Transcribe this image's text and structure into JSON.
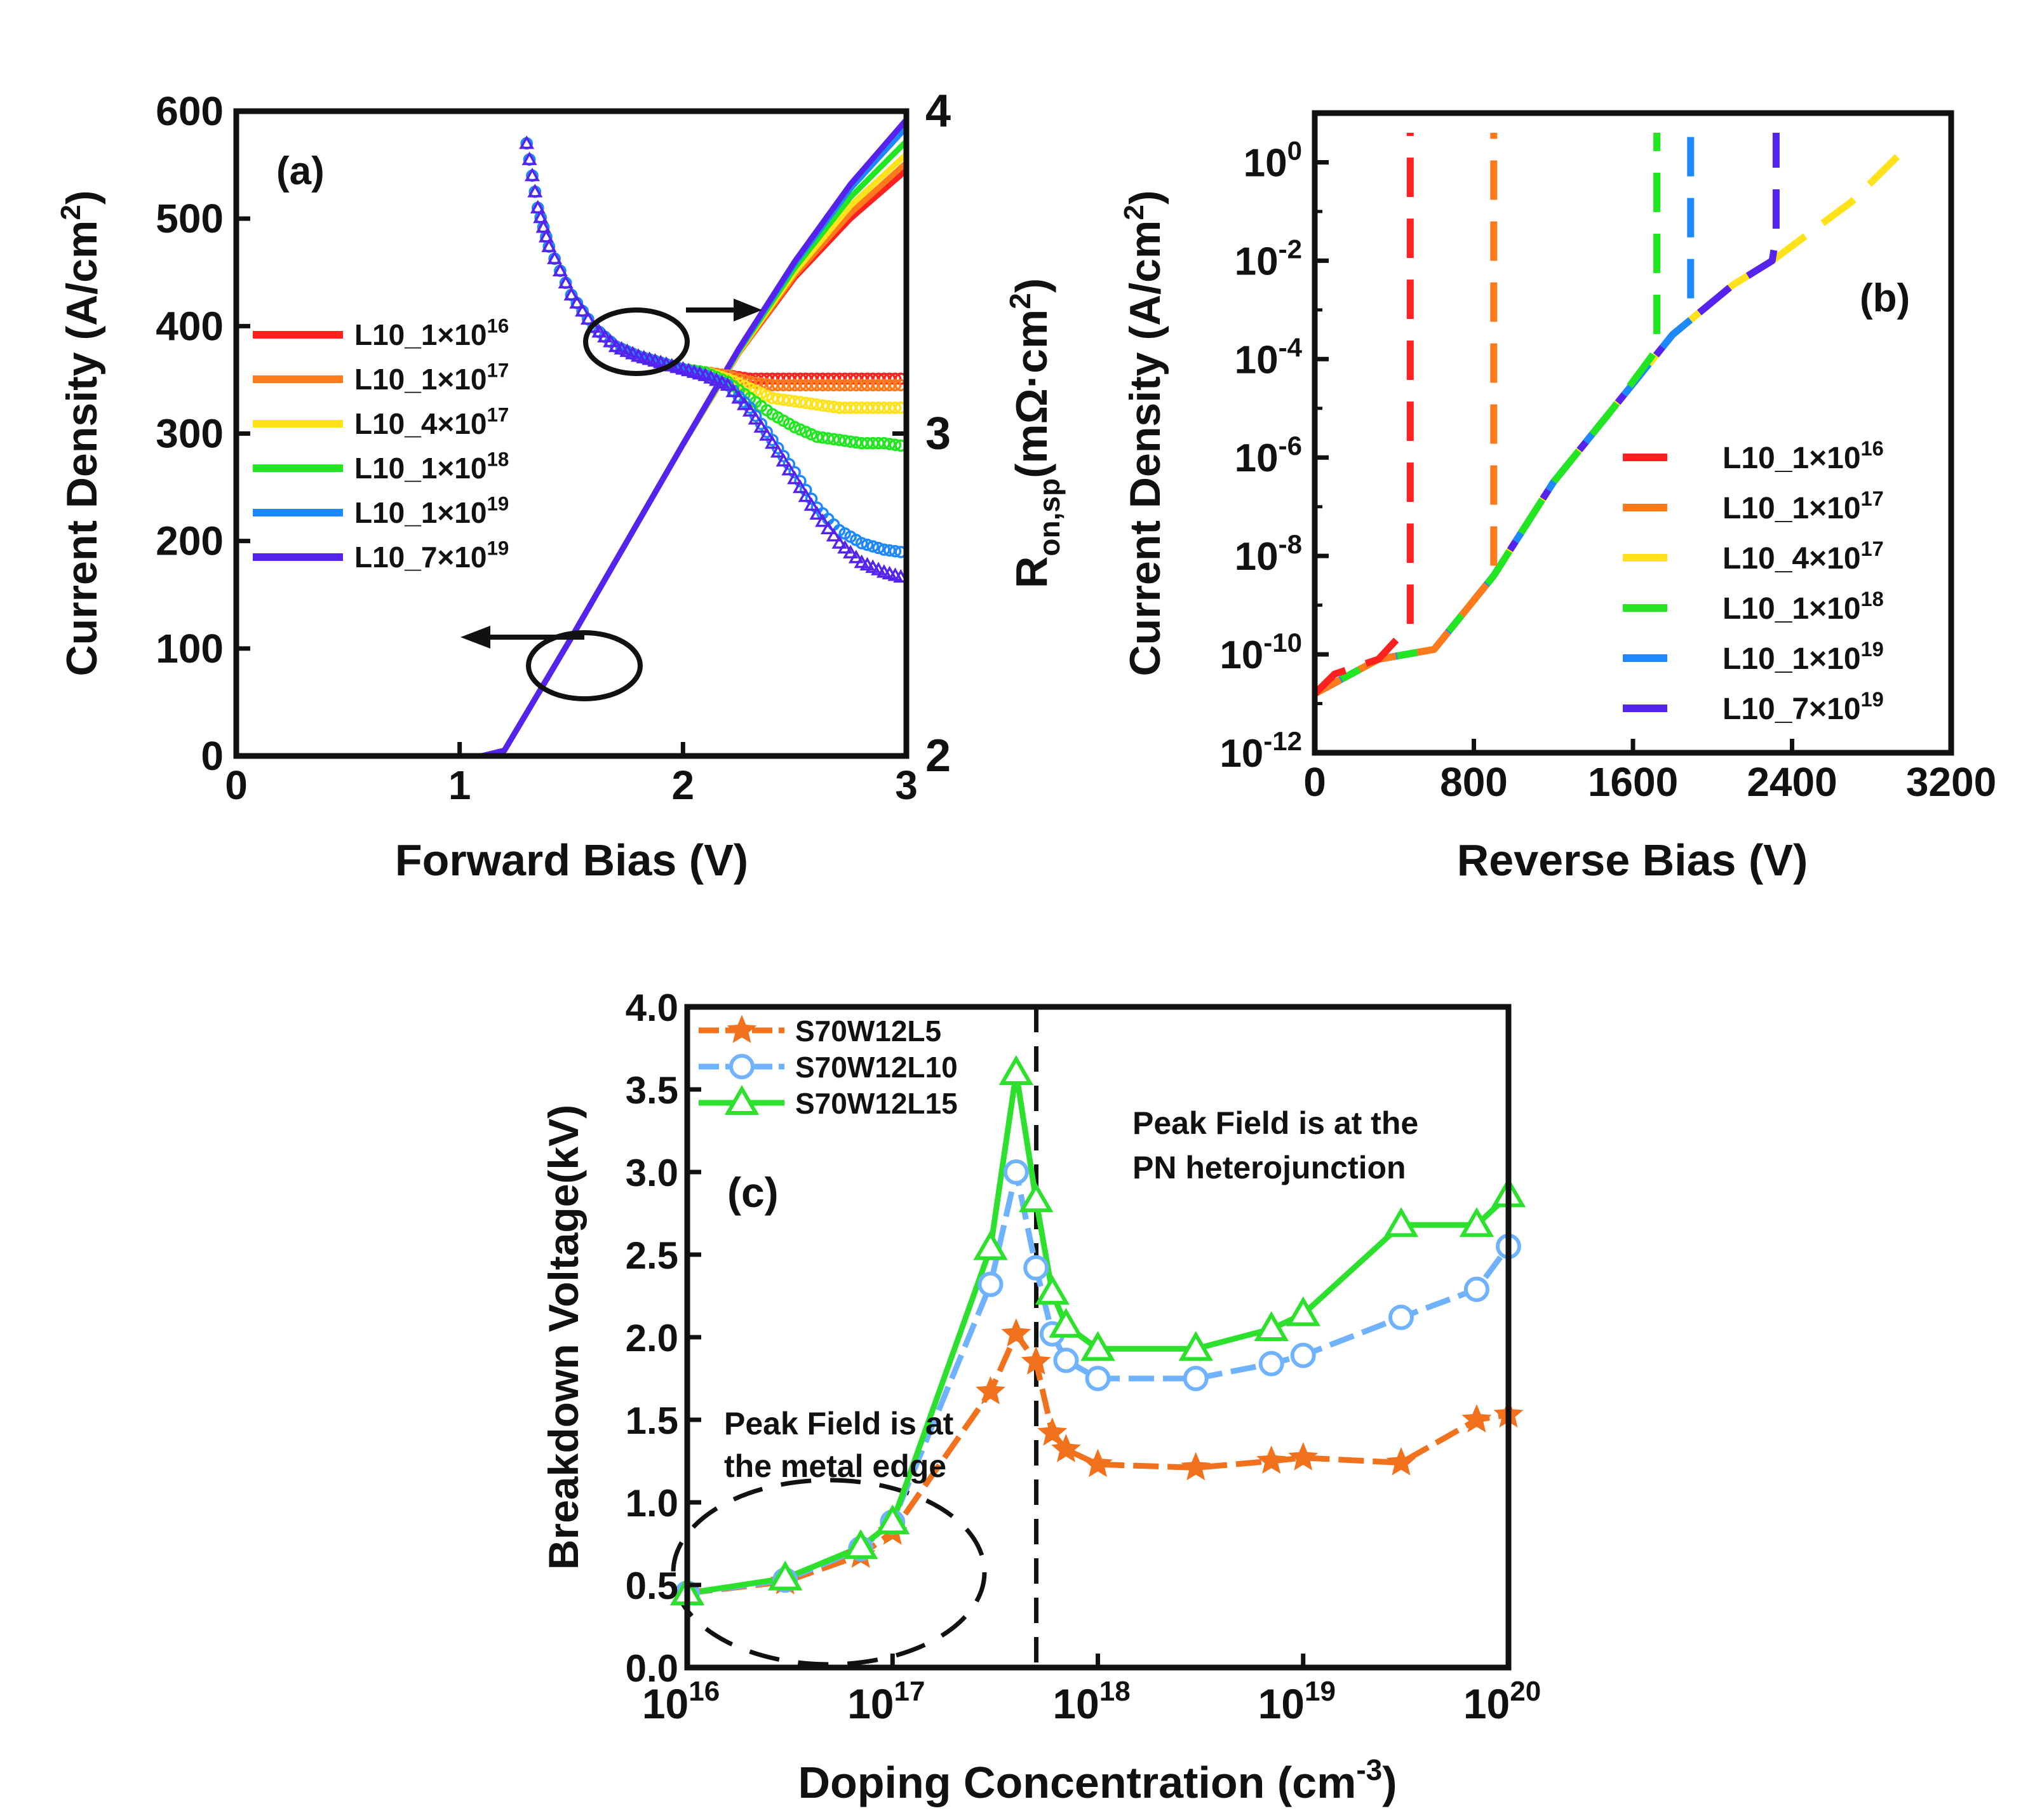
{
  "figure": {
    "panels": [
      "(a)",
      "(b)",
      "(c)"
    ]
  },
  "chart_data": [
    {
      "id": "a",
      "type": "line",
      "panel_label": "(a)",
      "xlabel": "Forward Bias (V)",
      "ylabel": "Current Density (A/cm²)",
      "ylabel_parts": {
        "main": "Current Density (A/cm",
        "sup": "2",
        "tail": ")"
      },
      "y2label_parts": {
        "main": "R",
        "sub": "on,sp",
        "rest": "(mΩ·cm",
        "sup": "2",
        "tail": ")"
      },
      "xlim": [
        0,
        3
      ],
      "ylim": [
        0,
        600
      ],
      "y2lim": [
        2,
        4
      ],
      "xticks": [
        0,
        1,
        2,
        3
      ],
      "yticks": [
        0,
        100,
        200,
        300,
        400,
        500,
        600
      ],
      "y2ticks": [
        2,
        3,
        4
      ],
      "legend": [
        {
          "base": "L10_1×10",
          "exp": "16",
          "color": "#ff2020"
        },
        {
          "base": "L10_1×10",
          "exp": "17",
          "color": "#ff7a1a"
        },
        {
          "base": "L10_4×10",
          "exp": "17",
          "color": "#ffe21a"
        },
        {
          "base": "L10_1×10",
          "exp": "18",
          "color": "#22e622"
        },
        {
          "base": "L10_1×10",
          "exp": "19",
          "color": "#1e88ff"
        },
        {
          "base": "L10_7×10",
          "exp": "19",
          "color": "#5522ee"
        }
      ],
      "current_density": {
        "x": [
          0,
          1.1,
          1.2,
          1.3,
          1.5,
          1.75,
          2.0,
          2.25,
          2.5,
          2.75,
          3.0
        ],
        "series": [
          {
            "name": "L10_1×10^16",
            "y": [
              0,
              0,
              5,
              40,
              110,
              200,
              290,
              375,
              445,
              500,
              545
            ]
          },
          {
            "name": "L10_1×10^17",
            "y": [
              0,
              0,
              5,
              40,
              110,
              200,
              290,
              375,
              447,
              505,
              552
            ]
          },
          {
            "name": "L10_4×10^17",
            "y": [
              0,
              0,
              5,
              40,
              110,
              200,
              290,
              376,
              450,
              512,
              560
            ]
          },
          {
            "name": "L10_1×10^18",
            "y": [
              0,
              0,
              5,
              40,
              110,
              200,
              290,
              377,
              454,
              520,
              572
            ]
          },
          {
            "name": "L10_1×10^19",
            "y": [
              0,
              0,
              5,
              40,
              110,
              200,
              290,
              378,
              458,
              528,
              585
            ]
          },
          {
            "name": "L10_7×10^19",
            "y": [
              0,
              0,
              5,
              40,
              110,
              200,
              290,
              379,
              460,
              532,
              592
            ]
          }
        ]
      },
      "ron_sp": {
        "x": [
          1.3,
          1.35,
          1.4,
          1.5,
          1.6,
          1.7,
          1.8,
          1.9,
          2.0,
          2.1,
          2.2,
          2.3,
          2.4,
          2.5,
          2.6,
          2.7,
          2.8,
          2.9,
          3.0
        ],
        "series": [
          {
            "name": "L10_1×10^16",
            "y": [
              3.9,
              3.7,
              3.58,
              3.43,
              3.33,
              3.27,
              3.24,
              3.22,
              3.2,
              3.19,
              3.18,
              3.17,
              3.17,
              3.17,
              3.17,
              3.17,
              3.17,
              3.17,
              3.17
            ]
          },
          {
            "name": "L10_1×10^17",
            "y": [
              3.9,
              3.7,
              3.58,
              3.43,
              3.33,
              3.27,
              3.24,
              3.22,
              3.2,
              3.19,
              3.18,
              3.16,
              3.15,
              3.15,
              3.15,
              3.15,
              3.15,
              3.15,
              3.15
            ]
          },
          {
            "name": "L10_4×10^17",
            "y": [
              3.9,
              3.7,
              3.58,
              3.43,
              3.33,
              3.27,
              3.24,
              3.22,
              3.2,
              3.19,
              3.17,
              3.14,
              3.11,
              3.1,
              3.09,
              3.08,
              3.08,
              3.08,
              3.08
            ]
          },
          {
            "name": "L10_1×10^18",
            "y": [
              3.9,
              3.7,
              3.58,
              3.43,
              3.33,
              3.27,
              3.24,
              3.22,
              3.2,
              3.19,
              3.16,
              3.11,
              3.06,
              3.02,
              2.99,
              2.98,
              2.97,
              2.97,
              2.96
            ]
          },
          {
            "name": "L10_1×10^19",
            "y": [
              3.9,
              3.7,
              3.58,
              3.43,
              3.33,
              3.27,
              3.24,
              3.22,
              3.2,
              3.18,
              3.15,
              3.08,
              2.98,
              2.88,
              2.77,
              2.7,
              2.66,
              2.64,
              2.63
            ]
          },
          {
            "name": "L10_7×10^19",
            "y": [
              3.9,
              3.7,
              3.58,
              3.43,
              3.33,
              3.27,
              3.24,
              3.22,
              3.2,
              3.18,
              3.15,
              3.07,
              2.97,
              2.86,
              2.75,
              2.66,
              2.6,
              2.57,
              2.55
            ]
          }
        ]
      },
      "annotations": [
        "arrow-right-to-Ron",
        "arrow-left-to-current-density"
      ]
    },
    {
      "id": "b",
      "type": "line",
      "panel_label": "(b)",
      "xlabel": "Reverse Bias (V)",
      "ylabel_parts": {
        "main": "Current Density (A/cm",
        "sup": "2",
        "tail": ")"
      },
      "xlim": [
        0,
        3200
      ],
      "ylim_log10": [
        -12,
        1
      ],
      "xticks": [
        0,
        800,
        1600,
        2400,
        3200
      ],
      "yticks": [
        {
          "base": "10",
          "exp": "0",
          "v": 0
        },
        {
          "base": "10",
          "exp": "-2",
          "v": -2
        },
        {
          "base": "10",
          "exp": "-4",
          "v": -4
        },
        {
          "base": "10",
          "exp": "-6",
          "v": -6
        },
        {
          "base": "10",
          "exp": "-8",
          "v": -8
        },
        {
          "base": "10",
          "exp": "-10",
          "v": -10
        },
        {
          "base": "10",
          "exp": "-12",
          "v": -12
        }
      ],
      "legend": [
        {
          "base": "L10_1×10",
          "exp": "16",
          "color": "#ff2020"
        },
        {
          "base": "L10_1×10",
          "exp": "17",
          "color": "#ff7a1a"
        },
        {
          "base": "L10_4×10",
          "exp": "17",
          "color": "#ffe21a"
        },
        {
          "base": "L10_1×10",
          "exp": "18",
          "color": "#22e622"
        },
        {
          "base": "L10_1×10",
          "exp": "19",
          "color": "#1e88ff"
        },
        {
          "base": "L10_7×10",
          "exp": "19",
          "color": "#5522ee"
        }
      ],
      "series": [
        {
          "name": "L10_1×10^16",
          "x": [
            0,
            100,
            320,
            480,
            480
          ],
          "log10_y": [
            -10.8,
            -10.4,
            -10.1,
            -9.4,
            0.6
          ]
        },
        {
          "name": "L10_1×10^17",
          "x": [
            0,
            320,
            600,
            900,
            900
          ],
          "log10_y": [
            -10.8,
            -10.1,
            -9.9,
            -8.4,
            0.6
          ]
        },
        {
          "name": "L10_4×10^17",
          "x": [
            0,
            320,
            600,
            900,
            1200,
            1500,
            1800,
            2100,
            2300,
            2700,
            3000
          ],
          "log10_y": [
            -10.8,
            -10.1,
            -9.9,
            -8.4,
            -6.5,
            -5.0,
            -3.5,
            -2.5,
            -2.0,
            -0.8,
            0.4
          ]
        },
        {
          "name": "L10_1×10^18",
          "x": [
            0,
            320,
            600,
            900,
            1200,
            1500,
            1720,
            1720
          ],
          "log10_y": [
            -10.8,
            -10.1,
            -9.9,
            -8.4,
            -6.5,
            -5.0,
            -3.8,
            0.6
          ]
        },
        {
          "name": "L10_1×10^19",
          "x": [
            0,
            320,
            600,
            900,
            1200,
            1500,
            1800,
            1890,
            1890
          ],
          "log10_y": [
            -10.8,
            -10.1,
            -9.9,
            -8.4,
            -6.5,
            -5.0,
            -3.5,
            -3.2,
            0.6
          ]
        },
        {
          "name": "L10_7×10^19",
          "x": [
            0,
            320,
            600,
            900,
            1200,
            1500,
            1800,
            2100,
            2300,
            2320,
            2320
          ],
          "log10_y": [
            -10.8,
            -10.1,
            -9.9,
            -8.4,
            -6.5,
            -5.0,
            -3.5,
            -2.5,
            -2.0,
            -1.5,
            0.6
          ]
        }
      ]
    },
    {
      "id": "c",
      "type": "line",
      "panel_label": "(c)",
      "xlabel_parts": {
        "main": "Doping Concentration (cm",
        "sup": "-3",
        "tail": ")"
      },
      "ylabel": "Breakdown Voltage(kV)",
      "xlim_log10": [
        16,
        20
      ],
      "ylim": [
        0,
        4
      ],
      "xticks": [
        {
          "base": "10",
          "exp": "16",
          "v": 16
        },
        {
          "base": "10",
          "exp": "17",
          "v": 17
        },
        {
          "base": "10",
          "exp": "18",
          "v": 18
        },
        {
          "base": "10",
          "exp": "19",
          "v": 19
        },
        {
          "base": "10",
          "exp": "20",
          "v": 20
        }
      ],
      "yticks": [
        "0.0",
        "0.5",
        "1.0",
        "1.5",
        "2.0",
        "2.5",
        "3.0",
        "3.5",
        "4.0"
      ],
      "x_doping": [
        1e+16,
        3e+16,
        7e+16,
        1e+17,
        3e+17,
        4e+17,
        5e+17,
        6e+17,
        7e+17,
        1e+18,
        3e+18,
        7e+18,
        1e+19,
        3e+19,
        7e+19,
        1e+20
      ],
      "series": [
        {
          "name": "S70W12L5",
          "marker": "star",
          "color": "#f2711c",
          "y": [
            0.45,
            0.52,
            0.68,
            0.82,
            1.67,
            2.02,
            1.85,
            1.42,
            1.32,
            1.23,
            1.21,
            1.25,
            1.27,
            1.24,
            1.5,
            1.53
          ]
        },
        {
          "name": "S70W12L10",
          "marker": "circle",
          "color": "#6fb2ff",
          "y": [
            0.45,
            0.53,
            0.72,
            0.88,
            2.32,
            3.0,
            2.42,
            2.02,
            1.86,
            1.75,
            1.75,
            1.84,
            1.89,
            2.12,
            2.29,
            2.55
          ]
        },
        {
          "name": "S70W12L15",
          "marker": "triangle",
          "color": "#2ee02e",
          "y": [
            0.45,
            0.54,
            0.73,
            0.88,
            2.54,
            3.6,
            2.83,
            2.27,
            2.07,
            1.93,
            1.93,
            2.05,
            2.14,
            2.68,
            2.68,
            2.86
          ]
        }
      ],
      "vline_log10": 17.7,
      "annotations": {
        "left_line1": "Peak Field is at",
        "left_line2": "the metal edge",
        "right_line1": "Peak Field is at the",
        "right_line2": "PN heterojunction"
      }
    }
  ]
}
